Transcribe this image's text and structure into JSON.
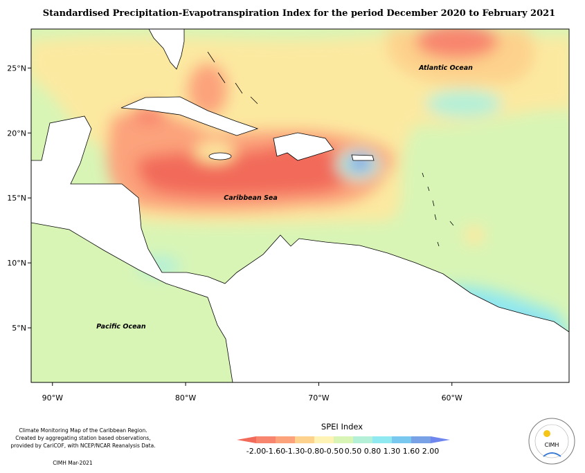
{
  "title": "Standardised Precipitation-Evapotranspiration Index for the period December 2020 to February 2021",
  "map": {
    "lon_range": [
      -91.6,
      -51.2
    ],
    "lat_range": [
      0.8,
      28
    ],
    "lon_ticks": [
      {
        "value": -90,
        "label": "90°W"
      },
      {
        "value": -80,
        "label": "80°W"
      },
      {
        "value": -70,
        "label": "70°W"
      },
      {
        "value": -60,
        "label": "60°W"
      }
    ],
    "lat_ticks": [
      {
        "value": 25,
        "label": "25°N"
      },
      {
        "value": 20,
        "label": "20°N"
      },
      {
        "value": 15,
        "label": "15°N"
      },
      {
        "value": 10,
        "label": "10°N"
      },
      {
        "value": 5,
        "label": "5°N"
      }
    ],
    "labels": [
      "Atlantic Ocean",
      "Caribbean Sea",
      "Pacific Ocean"
    ]
  },
  "legend": {
    "title": "SPEI Index",
    "labels": [
      "-2.00",
      "-1.60",
      "-1.30",
      "-0.80",
      "-0.50",
      "0.50",
      "0.80",
      "1.30",
      "1.60",
      "2.00"
    ],
    "colors": [
      "#f26a5a",
      "#f8856e",
      "#fca37c",
      "#fdd28c",
      "#fef3b4",
      "#d8f5b6",
      "#b4f0d8",
      "#90e8f0",
      "#78c8ef",
      "#78a1e6",
      "#6e86ee"
    ]
  },
  "footer": {
    "lines": [
      "Climate Monitoring Map of the Caribbean Region.",
      "Created by aggregating station based observations,",
      "provided by CariCOF, with NCEP/NCAR Reanalysis Data."
    ],
    "credit": "CIMH Mar-2021"
  },
  "logo": "CIMH"
}
